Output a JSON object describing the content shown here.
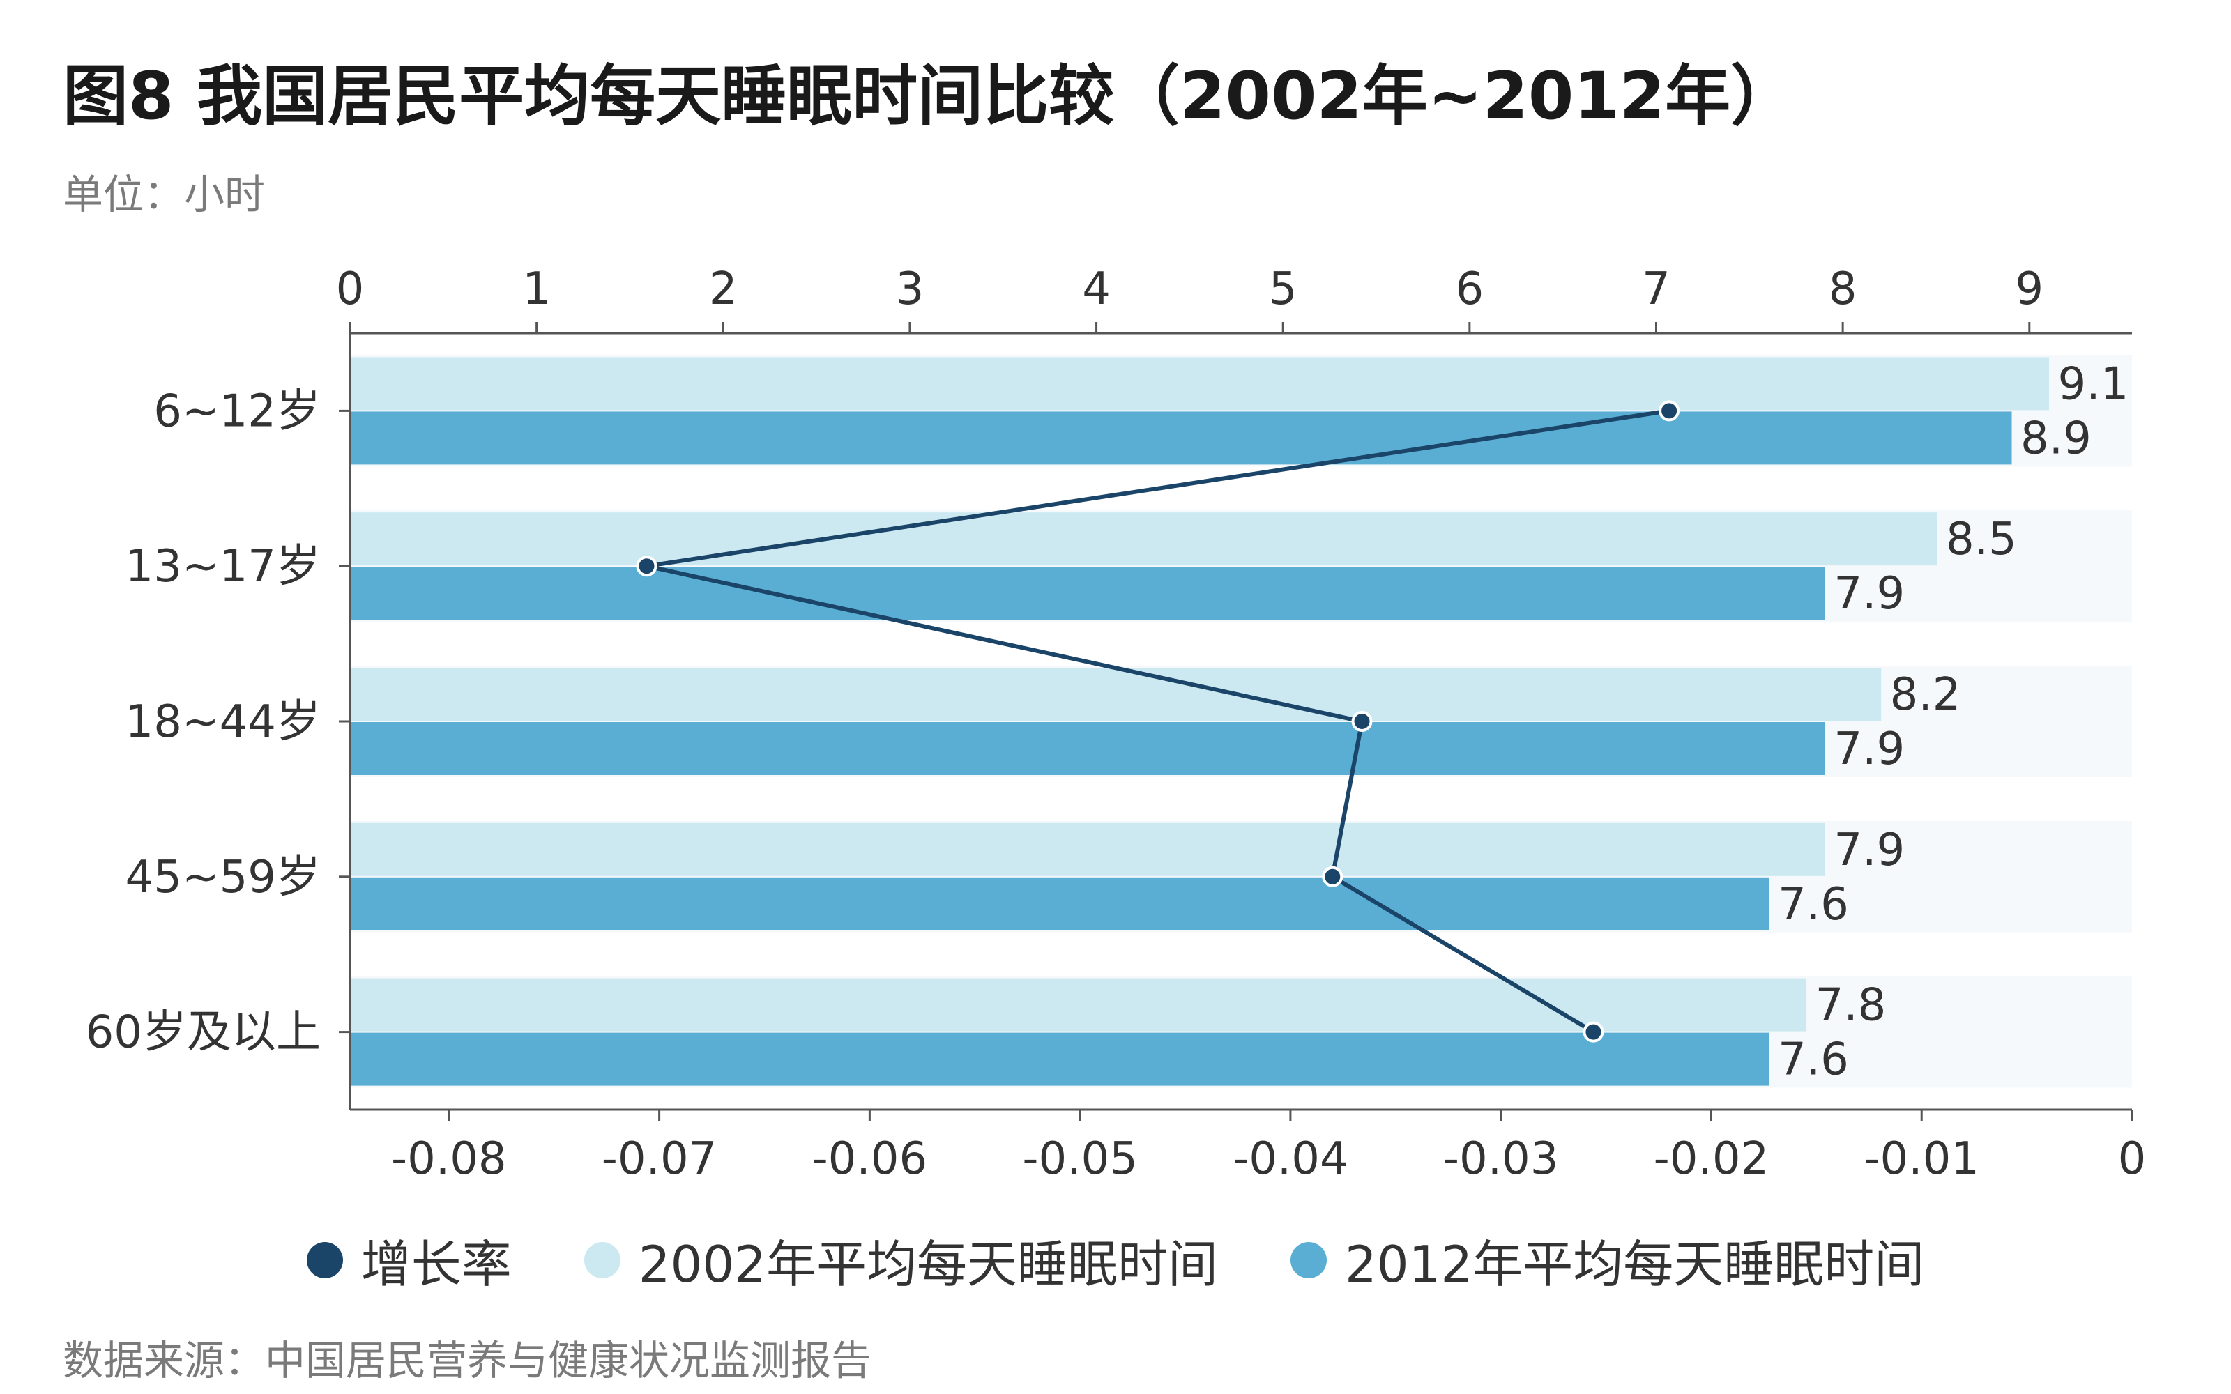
{
  "title": "图8 我国居民平均每天睡眠时间比较（2002年~2012年）",
  "unit": "单位：小时",
  "source": "数据来源：中国居民营养与健康状况监测报告",
  "colors": {
    "series_2002": "#cce9f1",
    "series_2012": "#5aaed4",
    "growth": "#1a4468",
    "axis": "#555555",
    "text": "#333333"
  },
  "chart_data": {
    "type": "bar",
    "orientation": "horizontal",
    "categories": [
      "6~12岁",
      "13~17岁",
      "18~44岁",
      "45~59岁",
      "60岁及以上"
    ],
    "series": [
      {
        "name": "2002年平均每天睡眠时间",
        "values": [
          9.1,
          8.5,
          8.2,
          7.9,
          7.8
        ]
      },
      {
        "name": "2012年平均每天睡眠时间",
        "values": [
          8.9,
          7.9,
          7.9,
          7.6,
          7.6
        ]
      }
    ],
    "line_series": {
      "name": "增长率",
      "values": [
        -0.022,
        -0.0706,
        -0.0366,
        -0.038,
        -0.0256
      ]
    },
    "top_axis": {
      "range": [
        0,
        9.55
      ],
      "ticks": [
        "0",
        "1",
        "2",
        "3",
        "4",
        "5",
        "6",
        "7",
        "8",
        "9"
      ]
    },
    "bottom_axis": {
      "range": [
        -0.0847,
        0
      ],
      "ticks": [
        "-0.08",
        "-0.07",
        "-0.06",
        "-0.05",
        "-0.04",
        "-0.03",
        "-0.02",
        "-0.01",
        "0"
      ]
    },
    "data_labels": [
      [
        "9.1",
        "8.9"
      ],
      [
        "8.5",
        "7.9"
      ],
      [
        "8.2",
        "7.9"
      ],
      [
        "7.9",
        "7.6"
      ],
      [
        "7.8",
        "7.6"
      ]
    ],
    "legend": [
      "增长率",
      "2002年平均每天睡眠时间",
      "2012年平均每天睡眠时间"
    ],
    "legend_position": "bottom"
  }
}
